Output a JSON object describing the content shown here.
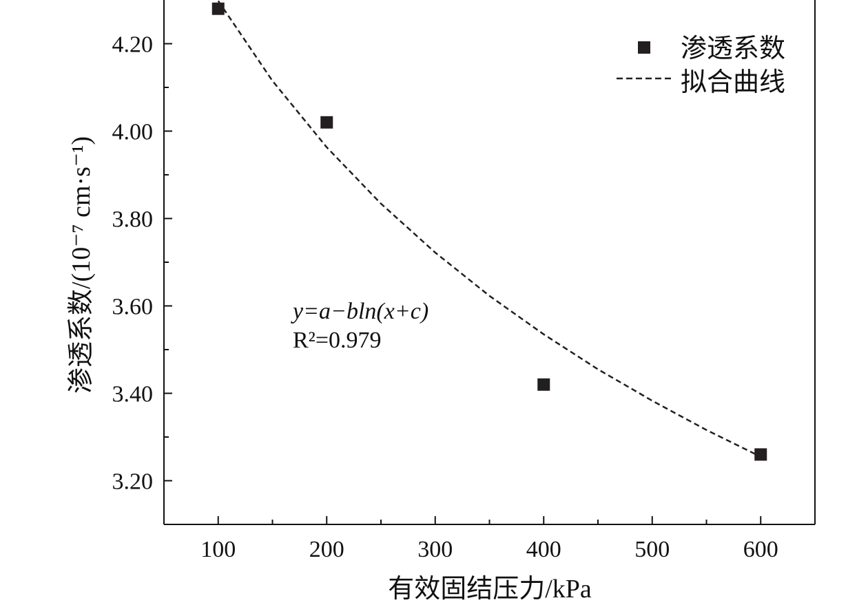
{
  "chart_data": {
    "type": "scatter",
    "xlabel": "有效固结压力/kPa",
    "ylabel": "渗透系数/(10⁻⁷ cm·s⁻¹)",
    "xlim": [
      50,
      650
    ],
    "ylim": [
      3.1,
      4.3
    ],
    "xticks": [
      100,
      200,
      300,
      400,
      500,
      600
    ],
    "xtick_labels": [
      "100",
      "200",
      "300",
      "400",
      "500",
      "600"
    ],
    "yticks": [
      3.2,
      3.4,
      3.6,
      3.8,
      4.0,
      4.2
    ],
    "ytick_labels": [
      "3.20",
      "3.40",
      "3.60",
      "3.80",
      "4.00",
      "4.20"
    ],
    "grid": false,
    "legend_position": "top-right",
    "series": [
      {
        "name": "渗透系数",
        "kind": "scatter",
        "marker": "square",
        "color": "#231f20",
        "x": [
          100,
          200,
          400,
          600
        ],
        "y": [
          4.28,
          4.02,
          3.42,
          3.26
        ]
      },
      {
        "name": "拟合曲线",
        "kind": "line",
        "style": "dashed",
        "color": "#231f20",
        "x": [
          100,
          150,
          200,
          250,
          300,
          350,
          400,
          450,
          500,
          550,
          600
        ],
        "y": [
          4.298,
          4.115,
          3.963,
          3.834,
          3.722,
          3.623,
          3.535,
          3.455,
          3.383,
          3.316,
          3.255
        ]
      }
    ],
    "annotations": {
      "equation": "y=a−bln(x+c)",
      "r2": "R²=0.979"
    }
  }
}
